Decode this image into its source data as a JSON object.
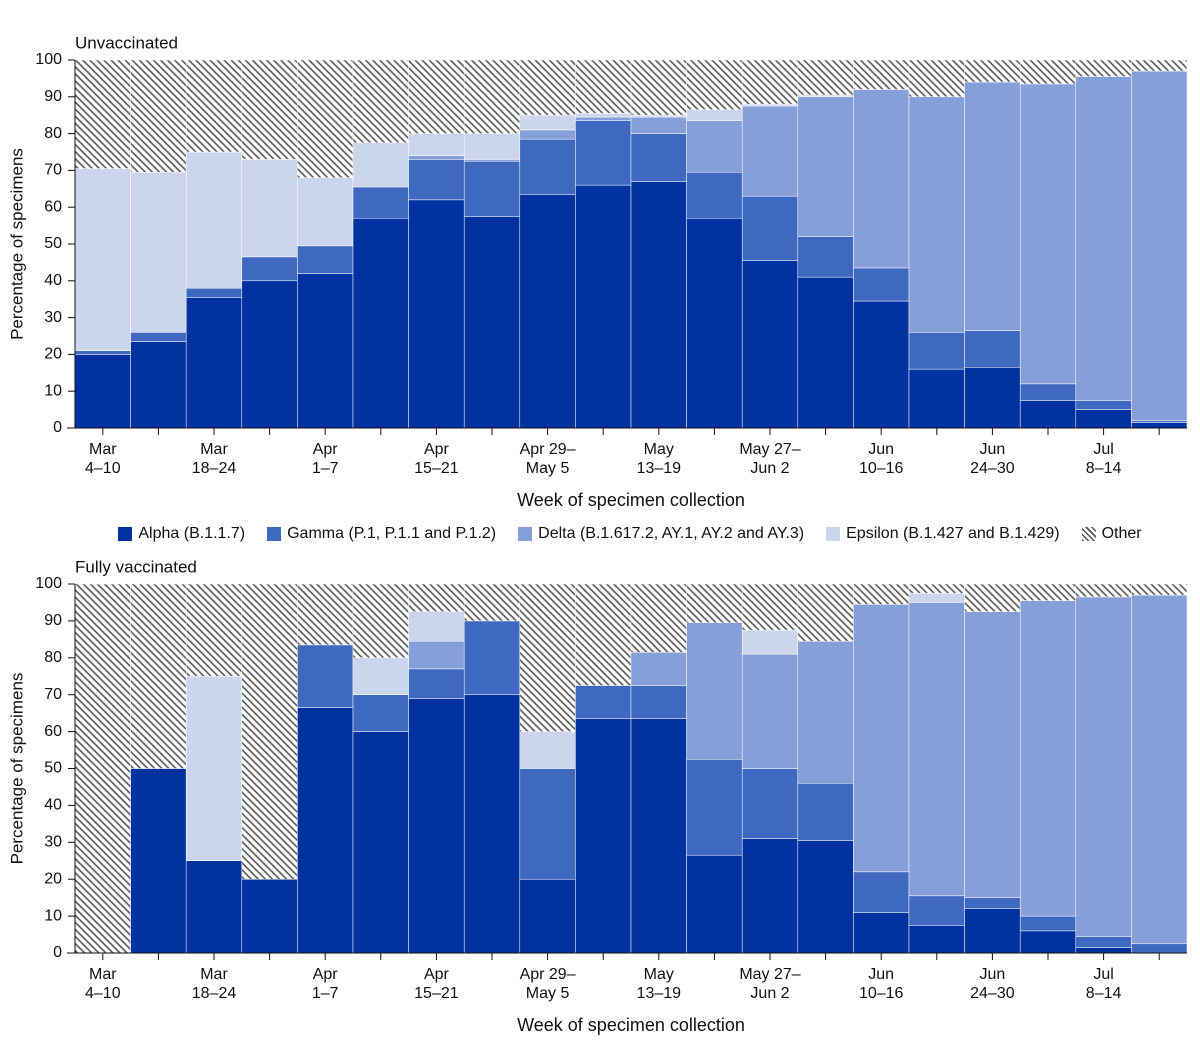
{
  "chart_data": [
    {
      "type": "stacked-bar",
      "title": "Unvaccinated",
      "x_label": "Week of specimen collection",
      "y_label": "Percentage of specimens",
      "categories": [
        "Mar\n4–10",
        null,
        "Mar\n18–24",
        null,
        "Apr\n1–7",
        null,
        "Apr\n15–21",
        null,
        "Apr 29–\nMay 5",
        null,
        "May\n13–19",
        null,
        "May 27–\nJun 2",
        null,
        "Jun\n10–16",
        null,
        "Jun\n24–30",
        null,
        "Jul\n8–14",
        null
      ],
      "ylim": [
        0,
        100
      ],
      "yticks": [
        0,
        10,
        20,
        30,
        40,
        50,
        60,
        70,
        80,
        90,
        100
      ],
      "series": [
        {
          "name": "Alpha (B.1.1.7)",
          "color": "#0033a1",
          "values": [
            20,
            23.5,
            35.5,
            40,
            42,
            57,
            62,
            57.5,
            63.5,
            66,
            67,
            57,
            45.5,
            41,
            34.5,
            16,
            16.5,
            7.5,
            5,
            1.5
          ]
        },
        {
          "name": "Gamma (P.1, P.1.1 and P.1.2)",
          "color": "#3f69c1",
          "values": [
            1,
            2.5,
            2.5,
            6.5,
            7.5,
            8.5,
            11,
            15,
            15,
            17.5,
            13,
            12.5,
            17.5,
            11,
            9,
            10,
            10,
            4.5,
            2.5,
            0.5
          ]
        },
        {
          "name": "Delta (B.1.617.2, AY.1, AY.2 and AY.3)",
          "color": "#85a0d8",
          "values": [
            0,
            0,
            0,
            0,
            0,
            0,
            1,
            0.5,
            2.5,
            1,
            4.5,
            14,
            24.5,
            38,
            48.5,
            64,
            67.5,
            81.5,
            88,
            95
          ]
        },
        {
          "name": "Epsilon (B.1.427 and B.1.429)",
          "color": "#cbd5ee",
          "values": [
            49.5,
            43.5,
            37,
            26.5,
            18.5,
            12,
            6,
            7,
            4,
            1,
            0.5,
            3,
            0.5,
            0.5,
            0,
            0,
            0,
            0,
            0,
            0
          ]
        },
        {
          "name": "Other",
          "color": "#555555",
          "hatch": true,
          "values": [
            29.5,
            30.5,
            25,
            27,
            32,
            22.5,
            20,
            20,
            15,
            14.5,
            15,
            13.5,
            12,
            9.5,
            8,
            10,
            6,
            6.5,
            4.5,
            3
          ]
        }
      ]
    },
    {
      "type": "stacked-bar",
      "title": "Fully vaccinated",
      "x_label": "Week of specimen collection",
      "y_label": "Percentage of specimens",
      "categories": [
        "Mar\n4–10",
        null,
        "Mar\n18–24",
        null,
        "Apr\n1–7",
        null,
        "Apr\n15–21",
        null,
        "Apr 29–\nMay 5",
        null,
        "May\n13–19",
        null,
        "May 27–\nJun 2",
        null,
        "Jun\n10–16",
        null,
        "Jun\n24–30",
        null,
        "Jul\n8–14",
        null
      ],
      "ylim": [
        0,
        100
      ],
      "yticks": [
        0,
        10,
        20,
        30,
        40,
        50,
        60,
        70,
        80,
        90,
        100
      ],
      "series": [
        {
          "color": "#0033a1",
          "values": [
            0,
            50,
            25,
            20,
            66.5,
            60,
            69,
            70,
            20,
            63.5,
            63.5,
            26.5,
            31,
            30.5,
            11,
            7.5,
            12,
            6,
            1.5,
            0
          ]
        },
        {
          "color": "#3f69c1",
          "values": [
            0,
            0,
            0,
            0,
            17,
            10,
            8,
            20,
            30,
            9,
            9,
            26,
            19,
            15.5,
            11,
            8,
            3,
            4,
            3,
            2.5
          ]
        },
        {
          "color": "#85a0d8",
          "values": [
            0,
            0,
            0,
            0,
            0,
            0,
            7.5,
            0,
            0,
            0,
            9,
            37,
            31,
            38.5,
            72.5,
            79.5,
            77.5,
            85.5,
            92,
            94.5
          ]
        },
        {
          "color": "#cbd5ee",
          "values": [
            0,
            0,
            50,
            0,
            0,
            10,
            8,
            0,
            10,
            0,
            0,
            0,
            6.5,
            0,
            0,
            2.5,
            0,
            0,
            0,
            0
          ]
        },
        {
          "color": "#555555",
          "hatch": true,
          "values": [
            100,
            50,
            25,
            80,
            16.5,
            20,
            7.5,
            10,
            40,
            27.5,
            18.5,
            10.5,
            12.5,
            15.5,
            5.5,
            2.5,
            7.5,
            4.5,
            3.5,
            3
          ]
        }
      ]
    }
  ]
}
